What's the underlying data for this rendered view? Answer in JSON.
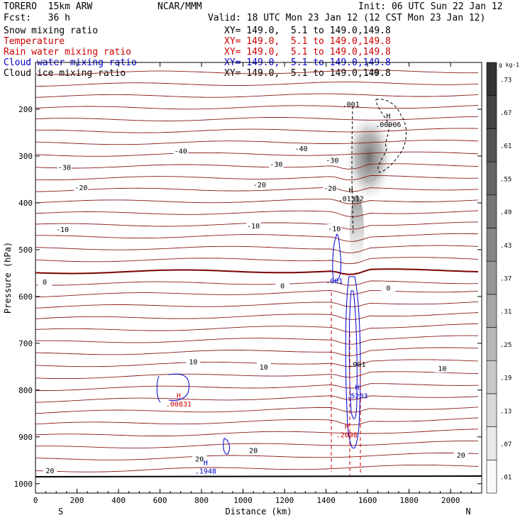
{
  "header": {
    "model": "TORERO  15km ARW",
    "center": "NCAR/MMM",
    "init": "Init: 06 UTC Sun 22 Jan 12",
    "fcst": "Fcst:   36 h",
    "valid": "Valid: 18 UTC Mon 23 Jan 12 (12 CST Mon 23 Jan 12)"
  },
  "fields": [
    {
      "name": "Snow mixing ratio",
      "color": "#000000"
    },
    {
      "name": "Temperature",
      "color": "#cc0000"
    },
    {
      "name": "Rain water mixing ratio",
      "color": "#cc0000"
    },
    {
      "name": "Cloud water mixing ratio",
      "color": "#0000cc"
    },
    {
      "name": "Cloud ice mixing ratio",
      "color": "#000000"
    }
  ],
  "xsect": [
    {
      "text": "XY= 149.0,  5.1 to 149.0,149.8",
      "color": "#cc0000"
    },
    {
      "text": "XY= 149.0,  5.1 to 149.0,149.8",
      "color": "#cc0000"
    },
    {
      "text": "XY= 149.0,  5.1 to 149.0,149.8",
      "color": "#cc0000"
    },
    {
      "text": "XY= 149.0,  5.1 to 149.0,149.8",
      "color": "#0000cc"
    },
    {
      "text": "XY= 149.0,  5.1 to 149.0,149.8",
      "color": "#000000"
    }
  ],
  "chart_data": {
    "type": "contour",
    "xlabel": "Distance (km)",
    "ylabel": "Pressure (hPa)",
    "xlim": [
      0,
      2150
    ],
    "ylim": [
      1020,
      100
    ],
    "x_ticks": [
      0,
      200,
      400,
      600,
      800,
      1000,
      1200,
      1400,
      1600,
      1800,
      2000
    ],
    "y_ticks": [
      200,
      300,
      400,
      500,
      600,
      700,
      800,
      900,
      1000
    ],
    "x_end_labels": {
      "left": "S",
      "right": "N"
    },
    "colorbar": {
      "unit": "g kg-1",
      "levels": [
        ".01",
        ".07",
        ".13",
        ".19",
        ".25",
        ".31",
        ".37",
        ".43",
        ".49",
        ".55",
        ".61",
        ".67",
        ".73"
      ]
    },
    "temperature_labels": [
      {
        "text": "-40",
        "x": 700,
        "p": 290
      },
      {
        "text": "-40",
        "x": 1280,
        "p": 285
      },
      {
        "text": "-30",
        "x": 140,
        "p": 325
      },
      {
        "text": "-30",
        "x": 1160,
        "p": 318
      },
      {
        "text": "-30",
        "x": 1430,
        "p": 310
      },
      {
        "text": "-20",
        "x": 220,
        "p": 368
      },
      {
        "text": "-20",
        "x": 1080,
        "p": 362
      },
      {
        "text": "-20",
        "x": 1420,
        "p": 370
      },
      {
        "text": "-10",
        "x": 130,
        "p": 458
      },
      {
        "text": "-10",
        "x": 1050,
        "p": 450
      },
      {
        "text": "-10",
        "x": 1440,
        "p": 456
      },
      {
        "text": "0",
        "x": 45,
        "p": 570
      },
      {
        "text": "0",
        "x": 1190,
        "p": 578
      },
      {
        "text": "0",
        "x": 1700,
        "p": 583
      },
      {
        "text": "10",
        "x": 760,
        "p": 740
      },
      {
        "text": "10",
        "x": 1100,
        "p": 752
      },
      {
        "text": "10",
        "x": 1960,
        "p": 755
      },
      {
        "text": "20",
        "x": 790,
        "p": 948
      },
      {
        "text": "20",
        "x": 1050,
        "p": 930
      },
      {
        "text": "20",
        "x": 70,
        "p": 973
      },
      {
        "text": "20",
        "x": 2050,
        "p": 940
      }
    ],
    "extrema": [
      {
        "mark": "H",
        "value": ".00906",
        "x": 1700,
        "p": 235,
        "color": "#000000"
      },
      {
        "mark": "H",
        "value": ".01312",
        "x": 1520,
        "p": 393,
        "color": "#000000"
      },
      {
        "mark": "H",
        "value": ".5203",
        "x": 1550,
        "p": 815,
        "color": "#0000cc"
      },
      {
        "mark": "H",
        "value": ".2098",
        "x": 1500,
        "p": 898,
        "color": "#cc0000"
      },
      {
        "mark": "H",
        "value": ".1948",
        "x": 820,
        "p": 975,
        "color": "#0000cc"
      },
      {
        "mark": "H",
        "value": ".00831",
        "x": 690,
        "p": 832,
        "color": "#cc0000"
      }
    ],
    "contour_value_labels": [
      {
        "text": ".001",
        "x": 1520,
        "p": 195,
        "color": "#000000"
      },
      {
        "text": ".70",
        "x": 1620,
        "p": 127,
        "color": "#000000"
      },
      {
        "text": ".001",
        "x": 1440,
        "p": 572,
        "color": "#0000cc"
      },
      {
        "text": ".001",
        "x": 1550,
        "p": 750,
        "color": "#000000"
      }
    ]
  }
}
